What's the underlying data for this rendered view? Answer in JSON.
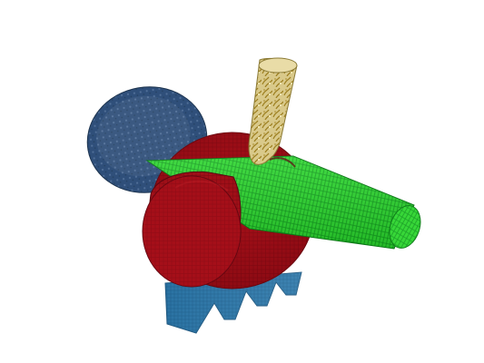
{
  "scene": {
    "background": "#ffffff",
    "parts": [
      {
        "name": "disk",
        "color": "#2f4f7a"
      },
      {
        "name": "base-support",
        "color": "#2f78a8"
      },
      {
        "name": "sphere-body",
        "color": "#9a0d16"
      },
      {
        "name": "cylinder-rod",
        "color": "#28d12d"
      },
      {
        "name": "cone-tip",
        "color": "#d7c46f"
      }
    ]
  }
}
